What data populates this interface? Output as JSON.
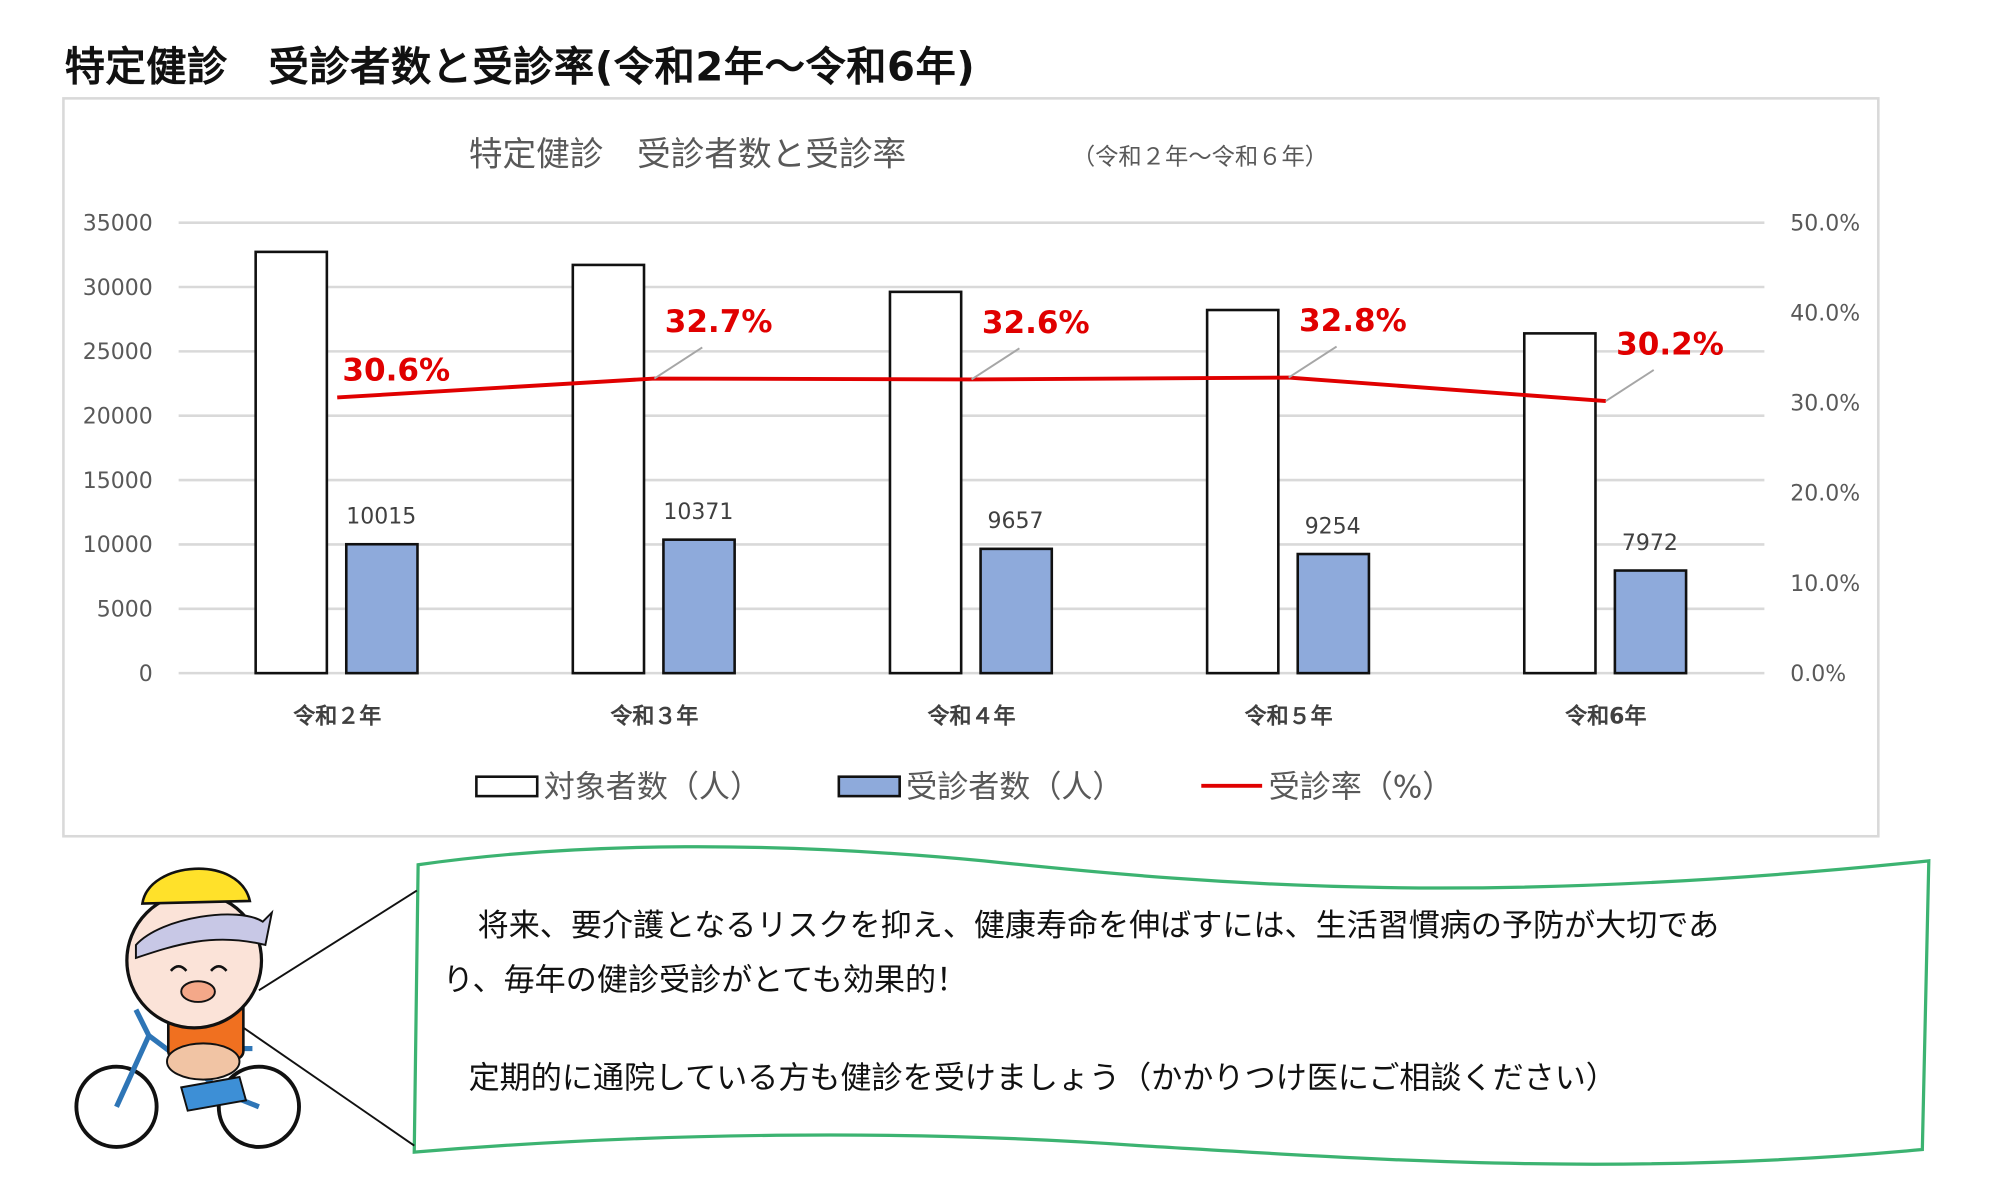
{
  "page_title": "特定健診　受診者数と受診率(令和2年～令和6年)",
  "colors": {
    "target_bar": "#ffffff",
    "examinee_bar": "#8eaadb",
    "rate_line": "#e00000",
    "bubble_border": "#3cb371",
    "rate_label": "#e00000"
  },
  "chart_data": {
    "type": "bar+line",
    "title": "特定健診　受診者数と受診率",
    "subtitle": "（令和２年～令和６年）",
    "categories": [
      "令和２年",
      "令和３年",
      "令和４年",
      "令和５年",
      "令和6年"
    ],
    "series": [
      {
        "name": "対象者数（人）",
        "type": "bar",
        "axis": "left",
        "values": [
          32729,
          31716,
          29623,
          28213,
          26397
        ]
      },
      {
        "name": "受診者数（人）",
        "type": "bar",
        "axis": "left",
        "values": [
          10015,
          10371,
          9657,
          9254,
          7972
        ],
        "labels": [
          "10015",
          "10371",
          "9657",
          "9254",
          "7972"
        ]
      },
      {
        "name": "受診率（%）",
        "type": "line",
        "axis": "right",
        "values": [
          30.6,
          32.7,
          32.6,
          32.8,
          30.2
        ],
        "labels": [
          "30.6%",
          "32.7%",
          "32.6%",
          "32.8%",
          "30.2%"
        ]
      }
    ],
    "left_axis": {
      "range": [
        0,
        35000
      ],
      "ticks": [
        "0",
        "5000",
        "10000",
        "15000",
        "20000",
        "25000",
        "30000",
        "35000"
      ]
    },
    "right_axis": {
      "range": [
        0,
        50
      ],
      "ticks": [
        "0.0%",
        "10.0%",
        "20.0%",
        "30.0%",
        "40.0%",
        "50.0%"
      ]
    },
    "grid": true,
    "legend_position": "bottom"
  },
  "bubble": {
    "line1": "　将来、要介護となるリスクを抑え、健康寿命を伸ばすには、生活習慣病の予防が大切であ",
    "line2": "り、毎年の健診受診がとても効果的！",
    "line3": "定期的に通院している方も健診を受けましょう（かかりつけ医にご相談ください）"
  },
  "illustration": "pig-on-bicycle-with-helmet"
}
